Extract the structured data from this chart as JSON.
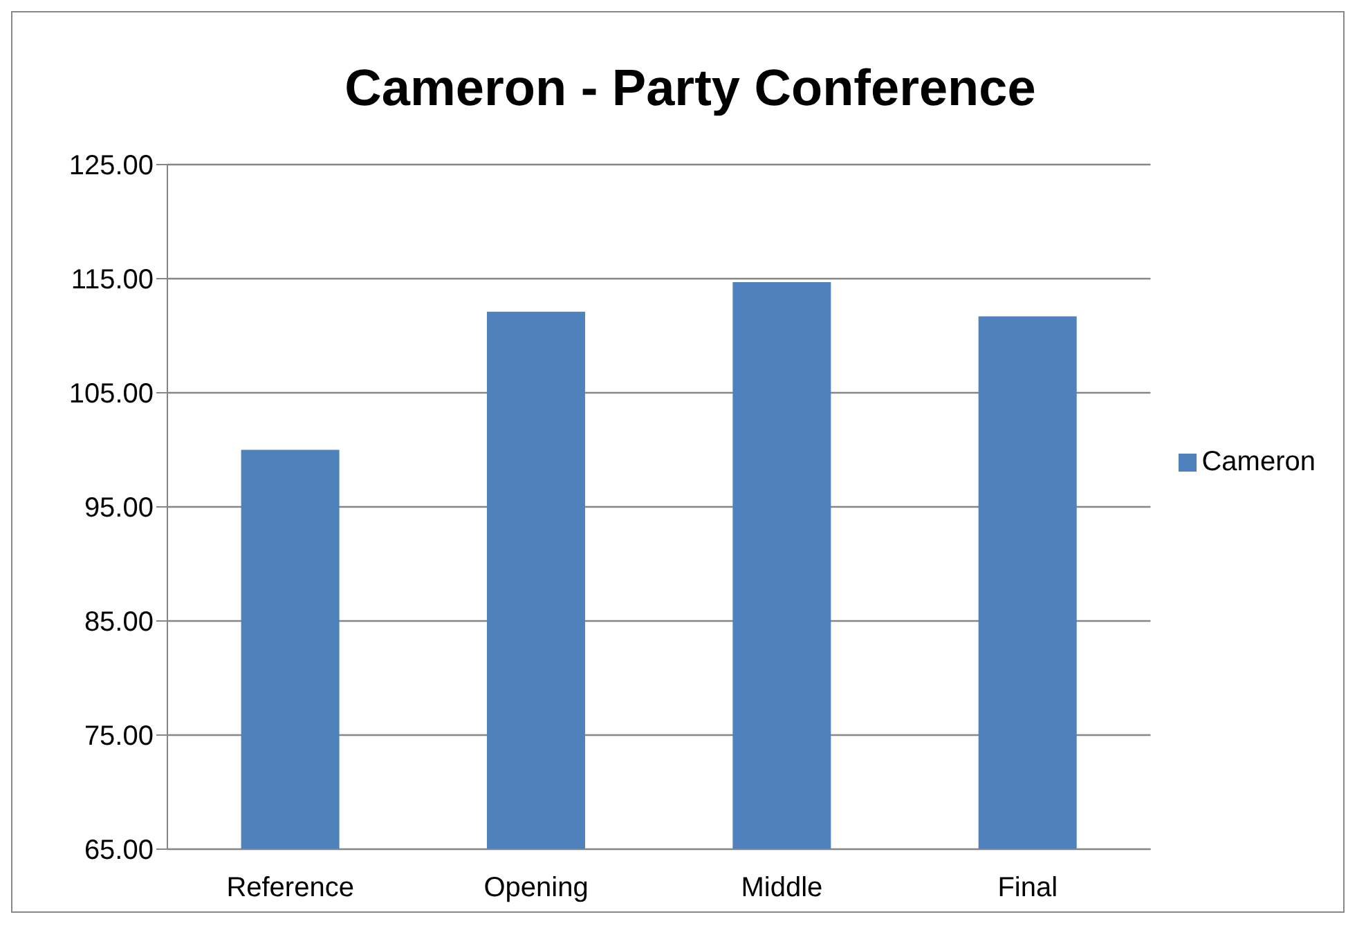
{
  "chart_data": {
    "type": "bar",
    "title": "Cameron - Party Conference",
    "categories": [
      "Reference",
      "Opening",
      "Middle",
      "Final"
    ],
    "series": [
      {
        "name": "Cameron",
        "color": "#4f81bd",
        "values": [
          100,
          112.1,
          114.7,
          111.7
        ]
      }
    ],
    "ylim": [
      65,
      125
    ],
    "yticks": [
      {
        "value": 65,
        "label": "65.00"
      },
      {
        "value": 75,
        "label": "75.00"
      },
      {
        "value": 85,
        "label": "85.00"
      },
      {
        "value": 95,
        "label": "95.00"
      },
      {
        "value": 105,
        "label": "105.00"
      },
      {
        "value": 115,
        "label": "115.00"
      },
      {
        "value": 125,
        "label": "125.00"
      }
    ],
    "grid": "y",
    "legend": "right"
  }
}
